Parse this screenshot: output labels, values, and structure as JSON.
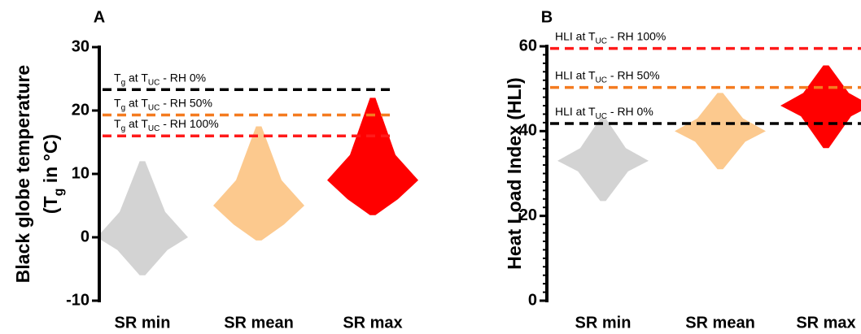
{
  "chart_data": [
    {
      "type": "violin",
      "panel_label": "A",
      "ylabel": [
        [
          "Black globe temperature"
        ],
        [
          "(T",
          "g",
          " in °C)"
        ]
      ],
      "ylim": [
        -10,
        30
      ],
      "yticks": [
        -10,
        0,
        10,
        20,
        30
      ],
      "categories": [
        "SR min",
        "SR mean",
        "SR max"
      ],
      "groups": [
        {
          "color": "#d3d3d3",
          "min": -6,
          "q1": -2,
          "median": 0,
          "q3": 4,
          "max": 12
        },
        {
          "color": "#fcc98e",
          "min": -0.5,
          "q1": 2,
          "median": 5,
          "q3": 9,
          "max": 17.5
        },
        {
          "color": "#ff0000",
          "min": 3.5,
          "q1": 6,
          "median": 9,
          "q3": 13,
          "max": 22
        }
      ],
      "ref_lines": [
        {
          "value": 23.3,
          "color": "#000000",
          "label": [
            "T",
            "g",
            " at T",
            "UC",
            " - RH 0%"
          ]
        },
        {
          "value": 19.3,
          "color": "#f47b20",
          "label": [
            "T",
            "g",
            " at T",
            "UC",
            " - RH 50%"
          ]
        },
        {
          "value": 16,
          "color": "#ff1a1a",
          "label": [
            "T",
            "g",
            " at T",
            "UC",
            " - RH 100%"
          ]
        }
      ]
    },
    {
      "type": "violin",
      "panel_label": "B",
      "ylabel": [
        [
          "Heat Load Index (HLI)"
        ]
      ],
      "ylim": [
        0,
        60
      ],
      "yticks": [
        0,
        20,
        40,
        60
      ],
      "yminor_step": 2,
      "categories": [
        "SR min",
        "SR mean",
        "SR max"
      ],
      "groups": [
        {
          "color": "#d3d3d3",
          "min": 23.5,
          "q1": 30.5,
          "median": 33,
          "q3": 36,
          "max": 43
        },
        {
          "color": "#fcc98e",
          "min": 31,
          "q1": 37.5,
          "median": 40,
          "q3": 43,
          "max": 49
        },
        {
          "color": "#ff0000",
          "min": 36,
          "q1": 43.5,
          "median": 46,
          "q3": 49,
          "max": 55.5
        }
      ],
      "ref_lines": [
        {
          "value": 59.5,
          "color": "#ff1a1a",
          "label": [
            "HLI at T",
            "UC",
            " - RH 100%"
          ]
        },
        {
          "value": 50.3,
          "color": "#f47b20",
          "label": [
            "HLI at T",
            "UC",
            " - RH 50%"
          ]
        },
        {
          "value": 41.8,
          "color": "#000000",
          "label": [
            "HLI at T",
            "UC",
            " - RH 0%"
          ]
        }
      ]
    }
  ]
}
